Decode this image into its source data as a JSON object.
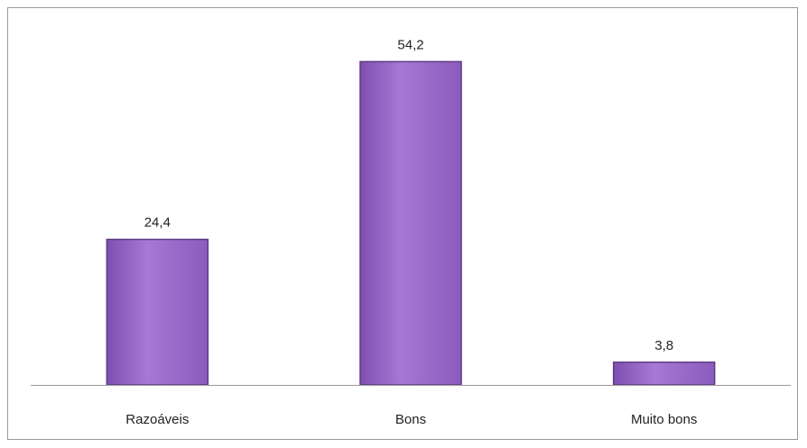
{
  "chart_data": {
    "type": "bar",
    "categories": [
      "Razoáveis",
      "Bons",
      "Muito bons"
    ],
    "values": [
      24.4,
      54.2,
      3.8
    ],
    "value_labels": [
      "24,4",
      "54,2",
      "3,8"
    ],
    "title": "",
    "xlabel": "",
    "ylabel": "",
    "ylim": [
      0,
      60
    ],
    "grid": false,
    "legend": "none",
    "bar_color": "#9a66c8",
    "bar_edge_color": "#5e3a86"
  }
}
